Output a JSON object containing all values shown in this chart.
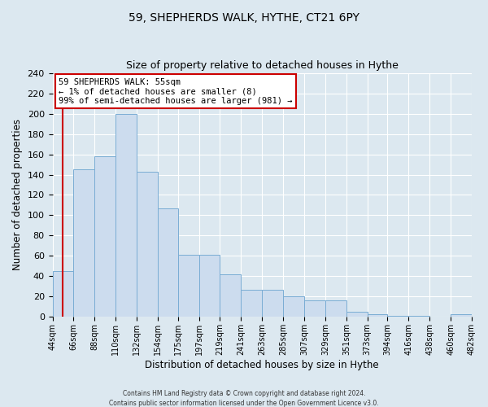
{
  "title": "59, SHEPHERDS WALK, HYTHE, CT21 6PY",
  "subtitle": "Size of property relative to detached houses in Hythe",
  "xlabel": "Distribution of detached houses by size in Hythe",
  "ylabel": "Number of detached properties",
  "bin_labels": [
    "44sqm",
    "66sqm",
    "88sqm",
    "110sqm",
    "132sqm",
    "154sqm",
    "175sqm",
    "197sqm",
    "219sqm",
    "241sqm",
    "263sqm",
    "285sqm",
    "307sqm",
    "329sqm",
    "351sqm",
    "373sqm",
    "394sqm",
    "416sqm",
    "438sqm",
    "460sqm",
    "482sqm"
  ],
  "bar_heights": [
    45,
    145,
    158,
    200,
    143,
    107,
    61,
    61,
    42,
    27,
    27,
    20,
    16,
    16,
    5,
    3,
    1,
    1,
    0,
    3
  ],
  "bin_edges": [
    44,
    66,
    88,
    110,
    132,
    154,
    175,
    197,
    219,
    241,
    263,
    285,
    307,
    329,
    351,
    373,
    394,
    416,
    438,
    460,
    482
  ],
  "bar_color": "#ccdcee",
  "bar_edge_color": "#7aadd4",
  "property_line_x": 55,
  "property_line_color": "#cc0000",
  "annotation_title": "59 SHEPHERDS WALK: 55sqm",
  "annotation_line1": "← 1% of detached houses are smaller (8)",
  "annotation_line2": "99% of semi-detached houses are larger (981) →",
  "annotation_box_facecolor": "#ffffff",
  "annotation_box_edgecolor": "#cc0000",
  "ylim": [
    0,
    240
  ],
  "yticks": [
    0,
    20,
    40,
    60,
    80,
    100,
    120,
    140,
    160,
    180,
    200,
    220,
    240
  ],
  "background_color": "#dce8f0",
  "grid_color": "#ffffff",
  "footer_line1": "Contains HM Land Registry data © Crown copyright and database right 2024.",
  "footer_line2": "Contains public sector information licensed under the Open Government Licence v3.0."
}
